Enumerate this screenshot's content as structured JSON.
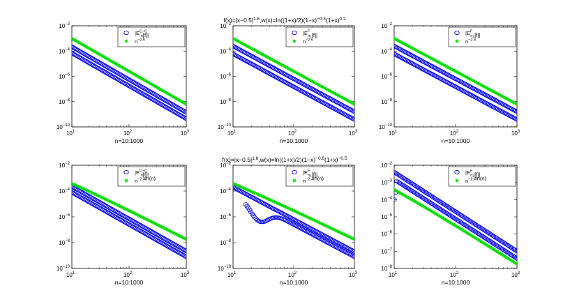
{
  "figure": {
    "row_titles": [
      {
        "base": "f(x)=|x−0.5|",
        "e1": "1.6",
        "mid": ",w(x)=ln((1+x)/2)(1−x)",
        "e2": "−0.3",
        "mid2": "(1+x)",
        "e3": "0.2"
      },
      {
        "base": "f(x)=|x−0.5|",
        "e1": "1.6",
        "mid": ",w(x)=ln((1+x)/2)(1−x)",
        "e2": "−0.6",
        "mid2": "(1+x)",
        "e3": "−0.5"
      }
    ],
    "xlabel": "n=10:1000"
  },
  "colors": {
    "blue": "#0000ff",
    "green": "#00dd00",
    "frame": "#000000"
  },
  "chart_data": [
    {
      "type": "scatter",
      "id": "r1c1",
      "xscale": "log",
      "yscale": "log",
      "xlim": [
        10,
        1000
      ],
      "ylim": [
        1e-10,
        0.01
      ],
      "xlabel": "n=10:1000",
      "xticks": [
        {
          "b": "10",
          "e": "1"
        },
        {
          "b": "10",
          "e": "2"
        },
        {
          "b": "10",
          "e": "3"
        }
      ],
      "yticks": [
        {
          "b": "10",
          "e": "−10"
        },
        {
          "b": "10",
          "e": "−8"
        },
        {
          "b": "10",
          "e": "−6"
        },
        {
          "b": "10",
          "e": "−4"
        },
        {
          "b": "10",
          "e": "−2"
        }
      ],
      "legend": [
        {
          "marker": "o",
          "color": "#0000ff",
          "parts": [
            {
              "t": "|E"
            },
            {
              "sup": "C−C",
              "sub": "n"
            },
            {
              "t": "[f]|"
            }
          ]
        },
        {
          "marker": "*",
          "color": "#00dd00",
          "parts": [
            {
              "t": "n"
            },
            {
              "sup": "−2.6"
            }
          ]
        }
      ],
      "series": [
        {
          "name": "error",
          "marker": "o",
          "color": "#0000ff",
          "model": "band",
          "c_hi": 0.00022,
          "c_lo": 7e-05,
          "p": 2.6
        },
        {
          "name": "reference",
          "marker": "*",
          "color": "#00dd00",
          "model": "power",
          "c": 0.001,
          "p": 2.6
        }
      ]
    },
    {
      "type": "scatter",
      "id": "r1c2",
      "xscale": "log",
      "yscale": "log",
      "xlim": [
        10,
        1000
      ],
      "ylim": [
        1e-10,
        0.01
      ],
      "xlabel": "n=10:1000",
      "xticks": [
        {
          "b": "10",
          "e": "1"
        },
        {
          "b": "10",
          "e": "2"
        },
        {
          "b": "10",
          "e": "3"
        }
      ],
      "yticks": [
        {
          "b": "10",
          "e": "−10"
        },
        {
          "b": "10",
          "e": "−8"
        },
        {
          "b": "10",
          "e": "−6"
        },
        {
          "b": "10",
          "e": "−4"
        },
        {
          "b": "10",
          "e": "−2"
        }
      ],
      "legend": [
        {
          "marker": "o",
          "color": "#0000ff",
          "parts": [
            {
              "t": "|E"
            },
            {
              "sup": "F",
              "sub": "n"
            },
            {
              "t": "₁[f]|"
            }
          ]
        },
        {
          "marker": "*",
          "color": "#00dd00",
          "parts": [
            {
              "t": "n"
            },
            {
              "sup": "−2.6"
            }
          ]
        }
      ],
      "series": [
        {
          "name": "error",
          "marker": "o",
          "color": "#0000ff",
          "model": "band",
          "c_hi": 0.00025,
          "c_lo": 6e-05,
          "p": 2.6
        },
        {
          "name": "reference",
          "marker": "*",
          "color": "#00dd00",
          "model": "power",
          "c": 0.001,
          "p": 2.6
        }
      ]
    },
    {
      "type": "scatter",
      "id": "r1c3",
      "xscale": "log",
      "yscale": "log",
      "xlim": [
        10,
        1000
      ],
      "ylim": [
        1e-10,
        0.01
      ],
      "xlabel": "n=10:1000",
      "xticks": [
        {
          "b": "10",
          "e": "1"
        },
        {
          "b": "10",
          "e": "2"
        },
        {
          "b": "10",
          "e": "3"
        }
      ],
      "yticks": [
        {
          "b": "10",
          "e": "−10"
        },
        {
          "b": "10",
          "e": "−8"
        },
        {
          "b": "10",
          "e": "−6"
        },
        {
          "b": "10",
          "e": "−4"
        },
        {
          "b": "10",
          "e": "−2"
        }
      ],
      "legend": [
        {
          "marker": "o",
          "color": "#0000ff",
          "parts": [
            {
              "t": "|E"
            },
            {
              "sup": "F",
              "sub": "n"
            },
            {
              "t": "₂[f]|"
            }
          ]
        },
        {
          "marker": "*",
          "color": "#00dd00",
          "parts": [
            {
              "t": "n"
            },
            {
              "sup": "−2.6"
            }
          ]
        }
      ],
      "series": [
        {
          "name": "error",
          "marker": "o",
          "color": "#0000ff",
          "model": "band",
          "c_hi": 0.00025,
          "c_lo": 6e-05,
          "p": 2.6
        },
        {
          "name": "reference",
          "marker": "*",
          "color": "#00dd00",
          "model": "power",
          "c": 0.001,
          "p": 2.6
        }
      ]
    },
    {
      "type": "scatter",
      "id": "r2c1",
      "xscale": "log",
      "yscale": "log",
      "xlim": [
        10,
        1000
      ],
      "ylim": [
        1e-10,
        0.01
      ],
      "xlabel": "n=10:1000",
      "xticks": [
        {
          "b": "10",
          "e": "1"
        },
        {
          "b": "10",
          "e": "2"
        },
        {
          "b": "10",
          "e": "3"
        }
      ],
      "yticks": [
        {
          "b": "10",
          "e": "−10"
        },
        {
          "b": "10",
          "e": "−8"
        },
        {
          "b": "10",
          "e": "−6"
        },
        {
          "b": "10",
          "e": "−4"
        },
        {
          "b": "10",
          "e": "−2"
        }
      ],
      "legend": [
        {
          "marker": "o",
          "color": "#0000ff",
          "parts": [
            {
              "t": "|E"
            },
            {
              "sup": "C−C",
              "sub": "n"
            },
            {
              "t": "[f]|"
            }
          ]
        },
        {
          "marker": "*",
          "color": "#00dd00",
          "parts": [
            {
              "t": "n"
            },
            {
              "sup": "−2.4"
            },
            {
              "t": "ln(n)"
            }
          ]
        }
      ],
      "series": [
        {
          "name": "error",
          "marker": "o",
          "color": "#0000ff",
          "model": "band",
          "c_hi": 0.00022,
          "c_lo": 8e-05,
          "p": 2.5
        },
        {
          "name": "reference",
          "marker": "*",
          "color": "#00dd00",
          "model": "powerlog",
          "c": 0.00038,
          "p": 2.4
        }
      ]
    },
    {
      "type": "scatter",
      "id": "r2c2",
      "xscale": "log",
      "yscale": "log",
      "xlim": [
        10,
        1000
      ],
      "ylim": [
        1e-10,
        0.01
      ],
      "xlabel": "n=10:1000",
      "xticks": [
        {
          "b": "10",
          "e": "1"
        },
        {
          "b": "10",
          "e": "2"
        },
        {
          "b": "10",
          "e": "3"
        }
      ],
      "yticks": [
        {
          "b": "10",
          "e": "−10"
        },
        {
          "b": "10",
          "e": "−8"
        },
        {
          "b": "10",
          "e": "−6"
        },
        {
          "b": "10",
          "e": "−4"
        },
        {
          "b": "10",
          "e": "−2"
        }
      ],
      "legend": [
        {
          "marker": "o",
          "color": "#0000ff",
          "parts": [
            {
              "t": "|E"
            },
            {
              "sup": "F",
              "sub": "n"
            },
            {
              "t": "₁[f]|"
            }
          ]
        },
        {
          "marker": "*",
          "color": "#00dd00",
          "parts": [
            {
              "t": "n"
            },
            {
              "sup": "−2.4"
            },
            {
              "t": "ln(n)"
            }
          ]
        }
      ],
      "series": [
        {
          "name": "error",
          "marker": "o",
          "color": "#0000ff",
          "model": "dip",
          "c_hi": 0.0002,
          "c_lo": 8e-05,
          "p": 2.5,
          "dip_n": 30,
          "dip_min": 4e-07
        },
        {
          "name": "reference",
          "marker": "*",
          "color": "#00dd00",
          "model": "powerlog",
          "c": 0.00038,
          "p": 2.4
        }
      ]
    },
    {
      "type": "scatter",
      "id": "r2c3",
      "xscale": "log",
      "yscale": "log",
      "xlim": [
        10,
        1000
      ],
      "ylim": [
        1e-08,
        0.01
      ],
      "xlabel": "n=10:1000",
      "xticks": [
        {
          "b": "10",
          "e": "1"
        },
        {
          "b": "10",
          "e": "2"
        },
        {
          "b": "10",
          "e": "3"
        }
      ],
      "yticks": [
        {
          "b": "10",
          "e": "−8"
        },
        {
          "b": "10",
          "e": "−7"
        },
        {
          "b": "10",
          "e": "−6"
        },
        {
          "b": "10",
          "e": "−5"
        },
        {
          "b": "10",
          "e": "−4"
        },
        {
          "b": "10",
          "e": "−3"
        },
        {
          "b": "10",
          "e": "−2"
        }
      ],
      "legend": [
        {
          "marker": "o",
          "color": "#0000ff",
          "parts": [
            {
              "t": "|E"
            },
            {
              "sup": "F",
              "sub": "n"
            },
            {
              "t": "₂[f]|"
            }
          ]
        },
        {
          "marker": "*",
          "color": "#00dd00",
          "parts": [
            {
              "t": "n"
            },
            {
              "sup": "−2.4"
            },
            {
              "t": "ln(n)"
            }
          ]
        }
      ],
      "series": [
        {
          "name": "error",
          "marker": "o",
          "color": "#0000ff",
          "model": "band",
          "c_hi": 0.004,
          "c_lo": 0.0015,
          "p": 2.3,
          "low_start": [
            0.0001,
            0.00025
          ]
        },
        {
          "name": "reference",
          "marker": "*",
          "color": "#00dd00",
          "model": "powerlog",
          "c": 0.00038,
          "p": 2.4
        }
      ]
    }
  ]
}
